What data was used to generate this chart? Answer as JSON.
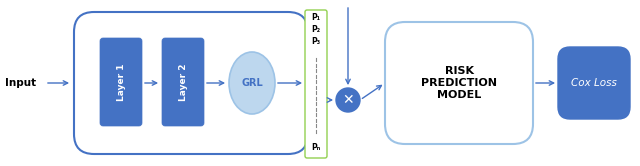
{
  "fig_width": 6.4,
  "fig_height": 1.66,
  "dpi": 100,
  "bg_color": "#ffffff",
  "blue_dark": "#4472C4",
  "blue_light": "#BDD7EE",
  "blue_mid": "#4472C4",
  "green_border": "#92D050",
  "gray_border": "#9DC3E6",
  "arrow_color": "#4472C4",
  "input_text": "Input",
  "layer1_text": "Layer 1",
  "layer2_text": "Layer 2",
  "grl_text": "GRL",
  "risk_line1": "RISK",
  "risk_line2": "PREDICTION",
  "risk_line3": "MODEL",
  "cox_text": "Cox Loss",
  "p_labels": [
    "P₁",
    "P₂",
    "P₃",
    "Pₙ"
  ]
}
